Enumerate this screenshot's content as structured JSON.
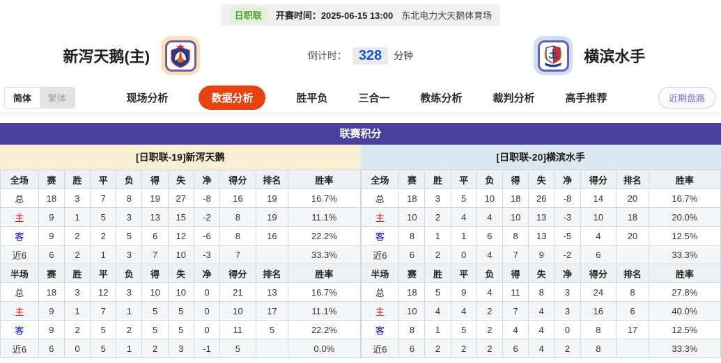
{
  "header": {
    "league_badge": "日职联",
    "kickoff_label": "开赛时间：",
    "kickoff_time": "2025-06-15 13:00",
    "venue": "东北电力大天鹅体育场"
  },
  "teams": {
    "home": {
      "name": "新泻天鹅(主)",
      "logo": "albirex-niigata-crest"
    },
    "away": {
      "name": "横滨水手",
      "logo": "yokohama-marinos-crest"
    }
  },
  "countdown": {
    "label": "倒计时：",
    "value": "328",
    "unit": "分钟"
  },
  "lang_toggle": {
    "simplified": "简体",
    "traditional": "繁体"
  },
  "nav": {
    "tabs": [
      {
        "label": "现场分析",
        "active": false
      },
      {
        "label": "数据分析",
        "active": true
      },
      {
        "label": "胜平负",
        "active": false
      },
      {
        "label": "三合一",
        "active": false
      },
      {
        "label": "教练分析",
        "active": false
      },
      {
        "label": "裁判分析",
        "active": false
      },
      {
        "label": "高手推荐",
        "active": false
      }
    ],
    "recent_button": "近期盘路"
  },
  "section": {
    "title": "联赛积分",
    "home_table_title": "[日职联-19]新泻天鹅",
    "away_table_title": "[日职联-20]横滨水手"
  },
  "tables": {
    "columns_full": [
      "全场",
      "赛",
      "胜",
      "平",
      "负",
      "得",
      "失",
      "净",
      "得分",
      "排名",
      "胜率"
    ],
    "columns_half": [
      "半场",
      "赛",
      "胜",
      "平",
      "负",
      "得",
      "失",
      "净",
      "得分",
      "排名",
      "胜率"
    ],
    "home_full": [
      {
        "label": "总",
        "cells": [
          "18",
          "3",
          "7",
          "8",
          "19",
          "27",
          "-8",
          "16",
          "19",
          "16.7%"
        ]
      },
      {
        "label": "主",
        "cells": [
          "9",
          "1",
          "5",
          "3",
          "13",
          "15",
          "-2",
          "8",
          "19",
          "11.1%"
        ]
      },
      {
        "label": "客",
        "cells": [
          "9",
          "2",
          "2",
          "5",
          "6",
          "12",
          "-6",
          "8",
          "16",
          "22.2%"
        ]
      },
      {
        "label": "近6",
        "cells": [
          "6",
          "2",
          "1",
          "3",
          "7",
          "10",
          "-3",
          "7",
          "",
          "33.3%"
        ]
      }
    ],
    "home_half": [
      {
        "label": "总",
        "cells": [
          "18",
          "3",
          "12",
          "3",
          "10",
          "10",
          "0",
          "21",
          "13",
          "16.7%"
        ]
      },
      {
        "label": "主",
        "cells": [
          "9",
          "1",
          "7",
          "1",
          "5",
          "5",
          "0",
          "10",
          "17",
          "11.1%"
        ]
      },
      {
        "label": "客",
        "cells": [
          "9",
          "2",
          "5",
          "2",
          "5",
          "5",
          "0",
          "11",
          "5",
          "22.2%"
        ]
      },
      {
        "label": "近6",
        "cells": [
          "6",
          "0",
          "5",
          "1",
          "2",
          "3",
          "-1",
          "5",
          "",
          "0.0%"
        ]
      }
    ],
    "away_full": [
      {
        "label": "总",
        "cells": [
          "18",
          "3",
          "5",
          "10",
          "18",
          "26",
          "-8",
          "14",
          "20",
          "16.7%"
        ]
      },
      {
        "label": "主",
        "cells": [
          "10",
          "2",
          "4",
          "4",
          "10",
          "13",
          "-3",
          "10",
          "18",
          "20.0%"
        ]
      },
      {
        "label": "客",
        "cells": [
          "8",
          "1",
          "1",
          "6",
          "8",
          "13",
          "-5",
          "4",
          "20",
          "12.5%"
        ]
      },
      {
        "label": "近6",
        "cells": [
          "6",
          "2",
          "0",
          "4",
          "7",
          "9",
          "-2",
          "6",
          "",
          "33.3%"
        ]
      }
    ],
    "away_half": [
      {
        "label": "总",
        "cells": [
          "18",
          "5",
          "9",
          "4",
          "11",
          "8",
          "3",
          "24",
          "8",
          "27.8%"
        ]
      },
      {
        "label": "主",
        "cells": [
          "10",
          "4",
          "4",
          "2",
          "7",
          "4",
          "3",
          "16",
          "6",
          "40.0%"
        ]
      },
      {
        "label": "客",
        "cells": [
          "8",
          "1",
          "5",
          "2",
          "4",
          "4",
          "0",
          "8",
          "17",
          "12.5%"
        ]
      },
      {
        "label": "近6",
        "cells": [
          "6",
          "2",
          "2",
          "2",
          "6",
          "4",
          "2",
          "8",
          "",
          "33.3%"
        ]
      }
    ]
  },
  "colors": {
    "section_header_purple": "#4b3f9c",
    "active_tab_orange": "#e8430f",
    "league_badge_green": "#54a033",
    "countdown_blue": "#1c56c8",
    "home_title_bg_cream": "#faefd4",
    "away_title_bg_blue": "#dce8f1",
    "home_row_label_red": "#e00000",
    "away_row_label_blue": "#0009d6"
  }
}
